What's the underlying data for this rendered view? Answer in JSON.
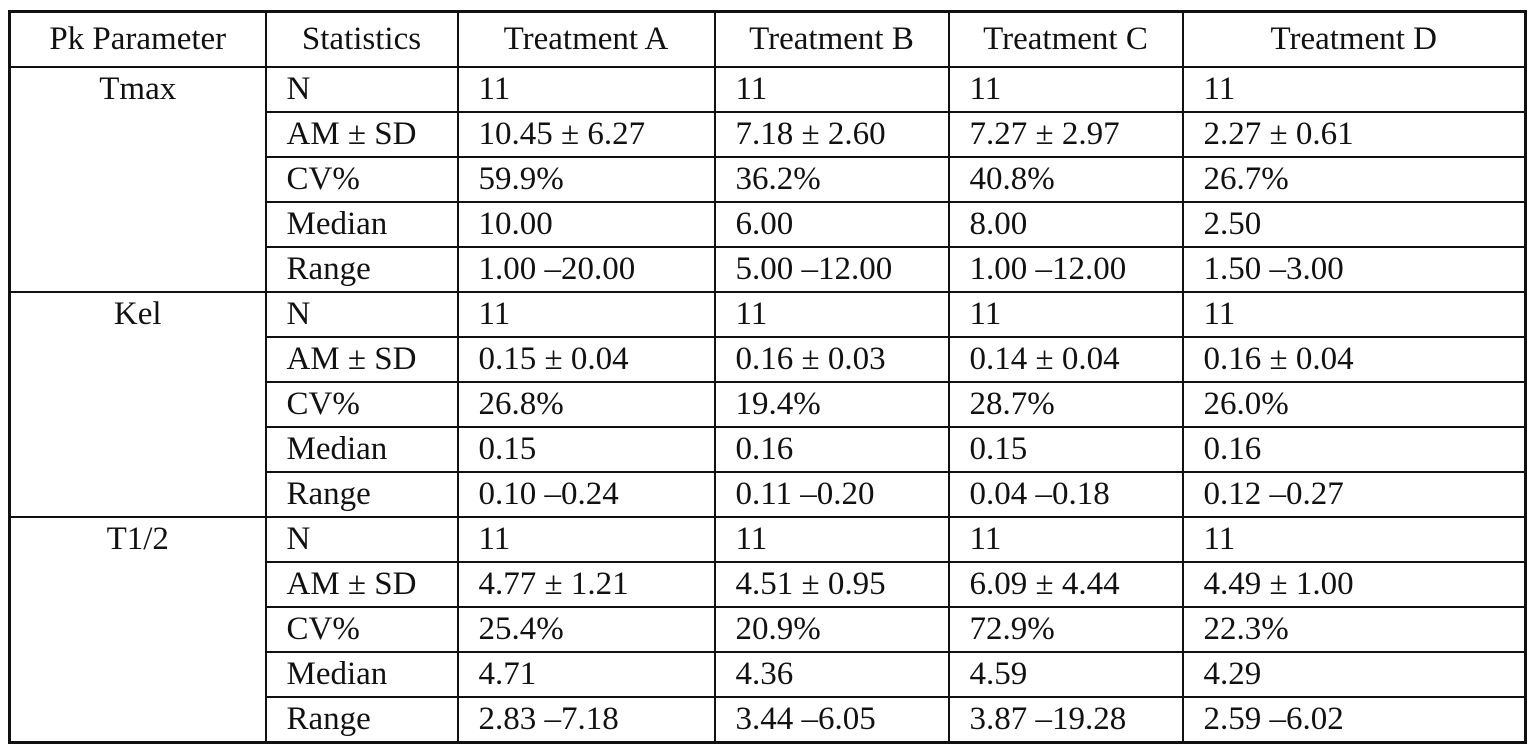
{
  "table": {
    "headers": [
      "Pk Parameter",
      "Statistics",
      "Treatment A",
      "Treatment B",
      "Treatment C",
      "Treatment D"
    ],
    "groups": [
      {
        "parameter": "Tmax",
        "rows": [
          {
            "stat": "N",
            "a": "11",
            "b": "11",
            "c": "11",
            "d": "11"
          },
          {
            "stat": "AM ± SD",
            "a": "10.45 ± 6.27",
            "b": "7.18 ± 2.60",
            "c": "7.27 ± 2.97",
            "d": "2.27 ± 0.61"
          },
          {
            "stat": "CV%",
            "a": "59.9%",
            "b": "36.2%",
            "c": "40.8%",
            "d": "26.7%"
          },
          {
            "stat": "Median",
            "a": "10.00",
            "b": "6.00",
            "c": "8.00",
            "d": "2.50"
          },
          {
            "stat": "Range",
            "a": "1.00 –20.00",
            "b": "5.00 –12.00",
            "c": "1.00 –12.00",
            "d": "1.50 –3.00"
          }
        ]
      },
      {
        "parameter": "Kel",
        "rows": [
          {
            "stat": "N",
            "a": "11",
            "b": "11",
            "c": "11",
            "d": "11"
          },
          {
            "stat": "AM ± SD",
            "a": "0.15 ± 0.04",
            "b": "0.16 ± 0.03",
            "c": "0.14 ± 0.04",
            "d": "0.16  ± 0.04"
          },
          {
            "stat": "CV%",
            "a": "26.8%",
            "b": "19.4%",
            "c": "28.7%",
            "d": "26.0%"
          },
          {
            "stat": "Median",
            "a": "0.15",
            "b": "0.16",
            "c": "0.15",
            "d": "0.16"
          },
          {
            "stat": "Range",
            "a": "0.10 –0.24",
            "b": "0.11 –0.20",
            "c": "0.04 –0.18",
            "d": "0.12 –0.27"
          }
        ]
      },
      {
        "parameter": "T1/2",
        "rows": [
          {
            "stat": "N",
            "a": "11",
            "b": "11",
            "c": "11",
            "d": "11"
          },
          {
            "stat": "AM ± SD",
            "a": "4.77 ± 1.21",
            "b": "4.51 ± 0.95",
            "c": "6.09 ± 4.44",
            "d": "4.49 ± 1.00"
          },
          {
            "stat": "CV%",
            "a": "25.4%",
            "b": "20.9%",
            "c": "72.9%",
            "d": "22.3%"
          },
          {
            "stat": "Median",
            "a": "4.71",
            "b": "4.36",
            "c": "4.59",
            "d": "4.29"
          },
          {
            "stat": "Range",
            "a": "2.83 –7.18",
            "b": "3.44 –6.05",
            "c": "3.87 –19.28",
            "d": "2.59 –6.02"
          }
        ]
      }
    ]
  }
}
